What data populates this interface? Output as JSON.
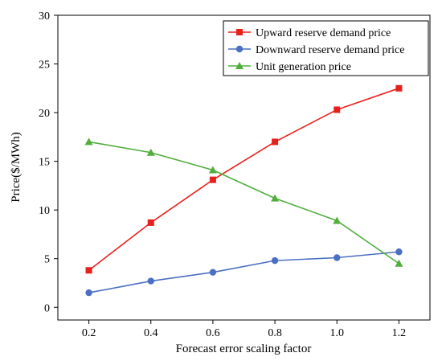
{
  "chart_data": {
    "type": "line",
    "xlabel": "Forecast error scaling factor",
    "ylabel": "Price($/MWh)",
    "xlim": [
      0.1,
      1.3
    ],
    "ylim": [
      -1.3,
      30
    ],
    "x_ticks": [
      "0.2",
      "0.4",
      "0.6",
      "0.8",
      "1.0",
      "1.2"
    ],
    "y_ticks": [
      "0",
      "5",
      "10",
      "15",
      "20",
      "25",
      "30"
    ],
    "x": [
      0.2,
      0.4,
      0.6,
      0.8,
      1.0,
      1.2
    ],
    "grid": false,
    "legend_position": "top-right",
    "series": [
      {
        "name": "Upward reserve demand price",
        "color": "#e8201c",
        "marker": "square",
        "values": [
          3.8,
          8.7,
          13.1,
          17.0,
          20.3,
          22.5
        ]
      },
      {
        "name": "Downward reserve demand price",
        "color": "#4a6fc3",
        "marker": "circle",
        "values": [
          1.5,
          2.7,
          3.6,
          4.8,
          5.1,
          5.7
        ]
      },
      {
        "name": "Unit generation price",
        "color": "#4fae3c",
        "marker": "triangle",
        "values": [
          17.0,
          15.9,
          14.1,
          11.2,
          8.9,
          4.5
        ]
      }
    ]
  }
}
